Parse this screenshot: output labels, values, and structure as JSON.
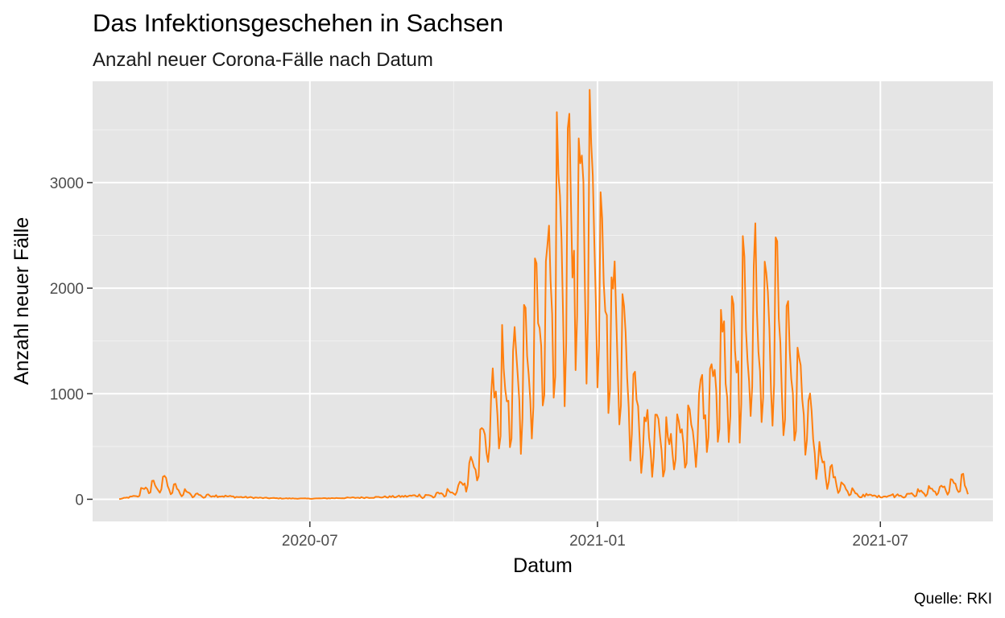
{
  "chart_data": {
    "type": "line",
    "title": "Das Infektionsgeschehen in Sachsen",
    "subtitle": "Anzahl neuer Corona-Fälle nach Datum",
    "xlabel": "Datum",
    "ylabel": "Anzahl neuer Fälle",
    "caption": "Quelle: RKI",
    "x_ticks": [
      "2020-07",
      "2021-01",
      "2021-07"
    ],
    "y_ticks": [
      0,
      1000,
      2000,
      3000
    ],
    "x_range": [
      "2020-02-13",
      "2021-09-11"
    ],
    "y_range": [
      -210,
      3960
    ],
    "grid": true,
    "series": [
      {
        "color": "#ff7f0e",
        "points": [
          [
            "2020-03-01",
            2
          ],
          [
            "2020-03-10",
            25
          ],
          [
            "2020-03-16",
            120
          ],
          [
            "2020-03-21",
            180
          ],
          [
            "2020-03-26",
            160
          ],
          [
            "2020-03-30",
            240
          ],
          [
            "2020-04-04",
            150
          ],
          [
            "2020-04-10",
            95
          ],
          [
            "2020-04-20",
            55
          ],
          [
            "2020-05-01",
            35
          ],
          [
            "2020-05-15",
            22
          ],
          [
            "2020-06-01",
            12
          ],
          [
            "2020-06-15",
            8
          ],
          [
            "2020-07-01",
            6
          ],
          [
            "2020-07-15",
            10
          ],
          [
            "2020-08-01",
            15
          ],
          [
            "2020-08-15",
            20
          ],
          [
            "2020-09-01",
            28
          ],
          [
            "2020-09-15",
            45
          ],
          [
            "2020-10-01",
            100
          ],
          [
            "2020-10-10",
            280
          ],
          [
            "2020-10-18",
            600
          ],
          [
            "2020-10-25",
            1200
          ],
          [
            "2020-11-01",
            1450
          ],
          [
            "2020-11-08",
            1500
          ],
          [
            "2020-11-15",
            1650
          ],
          [
            "2020-11-22",
            2300
          ],
          [
            "2020-11-29",
            2700
          ],
          [
            "2020-12-06",
            3300
          ],
          [
            "2020-12-13",
            3450
          ],
          [
            "2020-12-20",
            3780
          ],
          [
            "2020-12-27",
            3650
          ],
          [
            "2021-01-03",
            3150
          ],
          [
            "2021-01-10",
            2560
          ],
          [
            "2021-01-17",
            1800
          ],
          [
            "2021-01-24",
            1250
          ],
          [
            "2021-01-31",
            900
          ],
          [
            "2021-02-07",
            820
          ],
          [
            "2021-02-14",
            720
          ],
          [
            "2021-02-21",
            880
          ],
          [
            "2021-03-01",
            980
          ],
          [
            "2021-03-08",
            1200
          ],
          [
            "2021-03-15",
            1550
          ],
          [
            "2021-03-22",
            1850
          ],
          [
            "2021-03-29",
            2000
          ],
          [
            "2021-04-05",
            2180
          ],
          [
            "2021-04-12",
            2360
          ],
          [
            "2021-04-19",
            2280
          ],
          [
            "2021-04-26",
            2270
          ],
          [
            "2021-05-03",
            1780
          ],
          [
            "2021-05-10",
            1450
          ],
          [
            "2021-05-17",
            1020
          ],
          [
            "2021-05-24",
            520
          ],
          [
            "2021-05-31",
            300
          ],
          [
            "2021-06-07",
            160
          ],
          [
            "2021-06-14",
            80
          ],
          [
            "2021-06-21",
            40
          ],
          [
            "2021-07-01",
            25
          ],
          [
            "2021-07-15",
            50
          ],
          [
            "2021-08-01",
            110
          ],
          [
            "2021-08-10",
            150
          ],
          [
            "2021-08-17",
            180
          ],
          [
            "2021-08-23",
            230
          ],
          [
            "2021-08-26",
            90
          ]
        ]
      }
    ]
  }
}
